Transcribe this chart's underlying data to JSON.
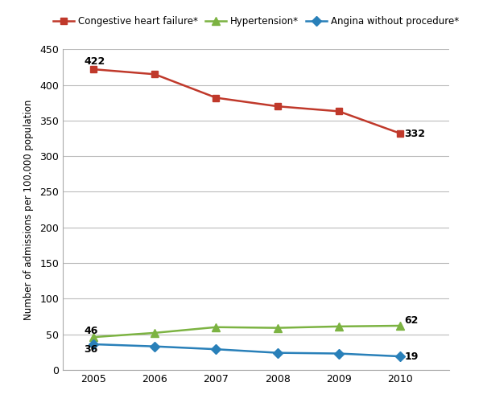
{
  "years": [
    2005,
    2006,
    2007,
    2008,
    2009,
    2010
  ],
  "congestive_heart_failure": [
    422,
    415,
    382,
    370,
    363,
    332
  ],
  "hypertension": [
    46,
    52,
    60,
    59,
    61,
    62
  ],
  "angina_without_procedure": [
    36,
    33,
    29,
    24,
    23,
    19
  ],
  "chf_color": "#c0392b",
  "hyp_color": "#7cb342",
  "ang_color": "#2980b9",
  "chf_label": "Congestive heart failure*",
  "hyp_label": "Hypertension*",
  "ang_label": "Angina without procedure*",
  "ylabel": "Number of admissions per 100,000 population",
  "ylim": [
    0,
    450
  ],
  "yticks": [
    0,
    50,
    100,
    150,
    200,
    250,
    300,
    350,
    400,
    450
  ],
  "bg_color": "#ffffff",
  "grid_color": "#bbbbbb",
  "spine_color": "#aaaaaa"
}
